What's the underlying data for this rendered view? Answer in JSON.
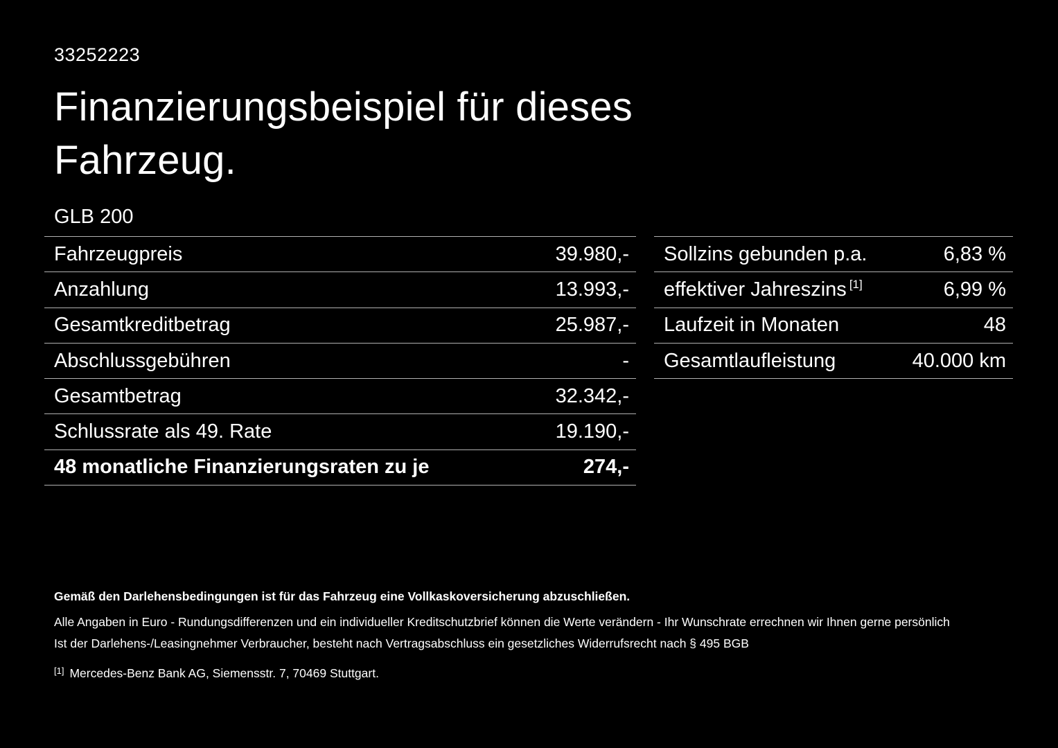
{
  "colors": {
    "background": "#000000",
    "text": "#ffffff",
    "line": "#b2b2b2"
  },
  "header": {
    "id_number": "33252223",
    "title_line1": "Finanzierungsbeispiel für dieses",
    "title_line2": "Fahrzeug.",
    "model": "GLB 200"
  },
  "left_table": {
    "rows": [
      {
        "label": "Fahrzeugpreis",
        "value": "39.980,-"
      },
      {
        "label": "Anzahlung",
        "value": "13.993,-"
      },
      {
        "label": "Gesamtkreditbetrag",
        "value": "25.987,-"
      },
      {
        "label": "Abschlussgebühren",
        "value": "-"
      },
      {
        "label": "Gesamtbetrag",
        "value": "32.342,-"
      },
      {
        "label": "Schlussrate als 49. Rate",
        "value": "19.190,-"
      },
      {
        "label": "48 monatliche Finanzierungsraten zu je",
        "value": "274,-"
      }
    ]
  },
  "right_table": {
    "rows": [
      {
        "label": "Sollzins gebunden p.a.",
        "value": "6,83 %"
      },
      {
        "label": "effektiver Jahreszins",
        "sup": "[1]",
        "value": "6,99 %"
      },
      {
        "label": "Laufzeit in Monaten",
        "value": "48"
      },
      {
        "label": "Gesamtlaufleistung",
        "value": "40.000 km"
      }
    ]
  },
  "footer": {
    "bold_note": "Gemäß den Darlehensbedingungen ist für das Fahrzeug eine Vollkaskoversicherung abzuschließen.",
    "note1": "Alle Angaben in Euro - Rundungsdifferenzen und ein individueller Kreditschutzbrief können die Werte verändern - Ihr Wunschrate errechnen wir Ihnen gerne persönlich",
    "note2": "Ist der Darlehens-/Leasingnehmer Verbraucher, besteht nach Vertragsabschluss ein gesetzliches Widerrufsrecht nach § 495 BGB",
    "footnote_marker": "[1]",
    "footnote_text": "Mercedes-Benz Bank AG, Siemensstr. 7, 70469 Stuttgart."
  }
}
